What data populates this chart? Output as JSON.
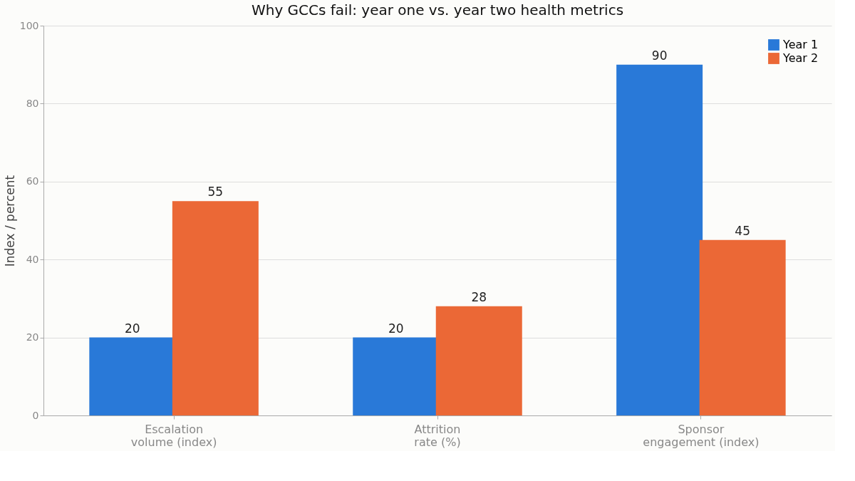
{
  "chart_data": {
    "type": "bar",
    "title": "Why GCCs fail: year one vs. year two health metrics",
    "ylabel": "Index / percent",
    "categories": [
      "Escalation\nvolume (index)",
      "Attrition\nrate (%)",
      "Sponsor\nengagement (index)"
    ],
    "series": [
      {
        "name": "Year 1",
        "color": "#2979d8",
        "values": [
          20,
          20,
          90
        ]
      },
      {
        "name": "Year 2",
        "color": "#eb6836",
        "values": [
          55,
          28,
          45
        ]
      }
    ],
    "ylim": [
      0,
      100
    ],
    "yticks": [
      0,
      20,
      40,
      60,
      80,
      100
    ],
    "grid": "y",
    "legend": "top right",
    "data_labels": true
  }
}
